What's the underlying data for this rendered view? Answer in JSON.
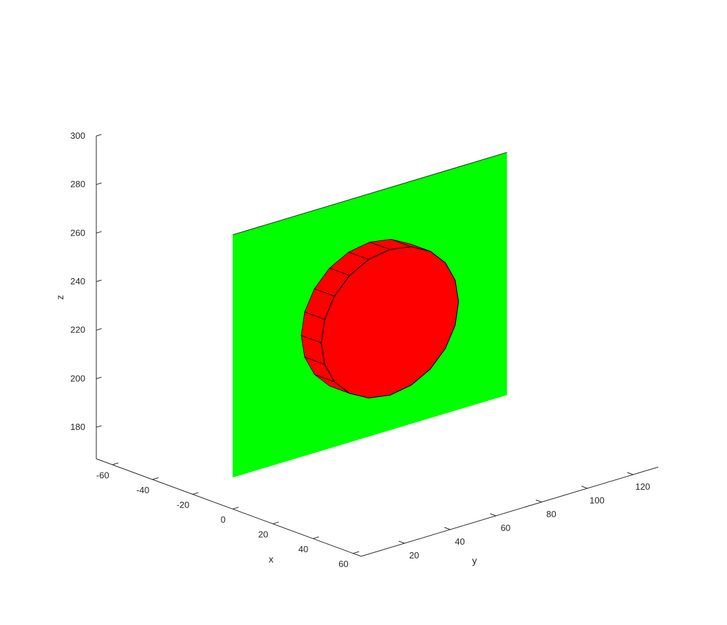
{
  "chart_data": {
    "type": "3d-surface",
    "title": "",
    "axes": {
      "x": {
        "label": "x",
        "ticks": [
          -60,
          -40,
          -20,
          0,
          20,
          40,
          60
        ],
        "range": [
          -68,
          64
        ]
      },
      "y": {
        "label": "y",
        "ticks": [
          20,
          40,
          60,
          80,
          100,
          120
        ],
        "range": [
          1,
          131
        ]
      },
      "z": {
        "label": "z",
        "ticks": [
          180,
          200,
          220,
          240,
          260,
          280,
          300
        ],
        "range": [
          167,
          300
        ]
      }
    },
    "grid": false,
    "legend": "none",
    "objects": [
      {
        "name": "plane",
        "shape": "rectangle",
        "color": "#00ff00",
        "x": 0,
        "y_range": [
          1,
          121
        ],
        "z_range": [
          180,
          280
        ]
      },
      {
        "name": "disc",
        "shape": "cylinder",
        "color": "#ff0000",
        "axis": "x",
        "x_range": [
          0,
          10
        ],
        "center_y": 61,
        "center_z": 230,
        "radius": 30,
        "segments": 20
      }
    ]
  }
}
